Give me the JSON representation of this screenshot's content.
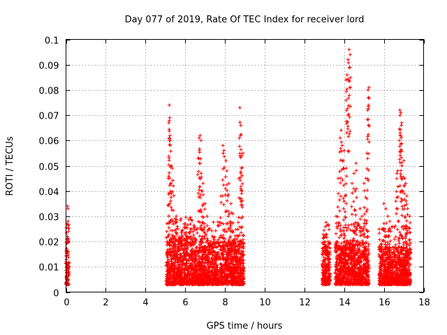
{
  "chart_data": {
    "type": "scatter",
    "title": "Day 077 of 2019, Rate Of TEC Index for receiver lord",
    "xlabel": "GPS time / hours",
    "ylabel": "ROTI / TECUs",
    "xlim": [
      0,
      18
    ],
    "ylim": [
      0,
      0.1
    ],
    "x_ticks": [
      0,
      2,
      4,
      6,
      8,
      10,
      12,
      14,
      16,
      18
    ],
    "y_ticks": [
      0,
      0.01,
      0.02,
      0.03,
      0.04,
      0.05,
      0.06,
      0.07,
      0.08,
      0.09,
      0.1
    ],
    "marker": "+",
    "grid": true,
    "series": [
      {
        "name": "ROTI",
        "color": "#ff0000",
        "segments": [
          {
            "x_start": 0.0,
            "x_end": 0.15,
            "core": [
              0.003,
              0.02
            ],
            "peaks": [
              [
                0.08,
                0.034
              ],
              [
                0.1,
                0.033
              ],
              [
                0.05,
                0.027
              ],
              [
                0.12,
                0.024
              ],
              [
                0.07,
                0.022
              ],
              [
                0.09,
                0.009
              ],
              [
                0.04,
                0.005
              ]
            ]
          },
          {
            "x_start": 5.05,
            "x_end": 6.5,
            "core": [
              0.003,
              0.022
            ],
            "peaks": [
              [
                5.2,
                0.074
              ],
              [
                5.22,
                0.069
              ],
              [
                5.18,
                0.067
              ],
              [
                5.2,
                0.061
              ],
              [
                5.25,
                0.06
              ],
              [
                5.3,
                0.05
              ],
              [
                5.35,
                0.049
              ],
              [
                5.15,
                0.045
              ],
              [
                5.4,
                0.042
              ],
              [
                5.3,
                0.039
              ],
              [
                5.5,
                0.028
              ],
              [
                5.6,
                0.026
              ],
              [
                6.0,
                0.027
              ],
              [
                6.3,
                0.025
              ]
            ]
          },
          {
            "x_start": 6.5,
            "x_end": 7.7,
            "core": [
              0.003,
              0.02
            ],
            "peaks": [
              [
                6.75,
                0.062
              ],
              [
                6.7,
                0.061
              ],
              [
                6.8,
                0.06
              ],
              [
                6.72,
                0.056
              ],
              [
                6.65,
                0.053
              ],
              [
                6.8,
                0.047
              ],
              [
                6.9,
                0.043
              ],
              [
                6.85,
                0.04
              ],
              [
                7.0,
                0.035
              ],
              [
                7.1,
                0.03
              ],
              [
                7.2,
                0.025
              ]
            ]
          },
          {
            "x_start": 7.7,
            "x_end": 8.95,
            "core": [
              0.003,
              0.02
            ],
            "peaks": [
              [
                8.75,
                0.073
              ],
              [
                8.8,
                0.066
              ],
              [
                8.78,
                0.062
              ],
              [
                7.9,
                0.058
              ],
              [
                7.95,
                0.056
              ],
              [
                8.05,
                0.052
              ],
              [
                8.1,
                0.048
              ],
              [
                8.9,
                0.055
              ],
              [
                8.85,
                0.054
              ],
              [
                8.8,
                0.047
              ],
              [
                8.7,
                0.045
              ],
              [
                8.85,
                0.04
              ],
              [
                8.2,
                0.043
              ],
              [
                8.15,
                0.038
              ],
              [
                8.3,
                0.035
              ],
              [
                8.4,
                0.031
              ],
              [
                7.8,
                0.038
              ]
            ]
          },
          {
            "x_start": 12.9,
            "x_end": 13.3,
            "core": [
              0.003,
              0.02
            ],
            "peaks": [
              [
                13.0,
                0.022
              ],
              [
                13.1,
                0.018
              ],
              [
                13.2,
                0.016
              ]
            ]
          },
          {
            "x_start": 13.55,
            "x_end": 15.25,
            "core": [
              0.003,
              0.02
            ],
            "peaks": [
              [
                14.25,
                0.096
              ],
              [
                14.3,
                0.094
              ],
              [
                14.2,
                0.092
              ],
              [
                14.28,
                0.089
              ],
              [
                14.15,
                0.086
              ],
              [
                14.1,
                0.084
              ],
              [
                15.25,
                0.081
              ],
              [
                15.2,
                0.08
              ],
              [
                15.22,
                0.077
              ],
              [
                15.18,
                0.072
              ],
              [
                14.2,
                0.07
              ],
              [
                13.85,
                0.064
              ],
              [
                13.8,
                0.061
              ],
              [
                13.9,
                0.058
              ],
              [
                14.0,
                0.056
              ],
              [
                13.95,
                0.052
              ],
              [
                14.1,
                0.049
              ],
              [
                13.7,
                0.045
              ],
              [
                14.6,
                0.051
              ],
              [
                14.5,
                0.047
              ],
              [
                15.1,
                0.045
              ],
              [
                15.0,
                0.043
              ],
              [
                14.4,
                0.043
              ],
              [
                14.55,
                0.04
              ],
              [
                14.05,
                0.038
              ],
              [
                15.15,
                0.037
              ],
              [
                14.8,
                0.033
              ],
              [
                14.9,
                0.03
              ],
              [
                13.6,
                0.03
              ]
            ]
          },
          {
            "x_start": 15.75,
            "x_end": 16.45,
            "core": [
              0.003,
              0.018
            ],
            "peaks": [
              [
                16.0,
                0.035
              ],
              [
                16.1,
                0.033
              ],
              [
                16.2,
                0.03
              ],
              [
                16.3,
                0.028
              ],
              [
                15.9,
                0.025
              ],
              [
                16.05,
                0.022
              ],
              [
                16.35,
                0.024
              ]
            ]
          },
          {
            "x_start": 16.45,
            "x_end": 17.35,
            "core": [
              0.003,
              0.018
            ],
            "peaks": [
              [
                16.8,
                0.072
              ],
              [
                16.85,
                0.071
              ],
              [
                16.9,
                0.067
              ],
              [
                16.88,
                0.066
              ],
              [
                16.82,
                0.063
              ],
              [
                17.0,
                0.052
              ],
              [
                16.9,
                0.05
              ],
              [
                16.7,
                0.048
              ],
              [
                16.65,
                0.047
              ],
              [
                17.05,
                0.045
              ],
              [
                17.1,
                0.043
              ],
              [
                16.95,
                0.04
              ],
              [
                17.15,
                0.038
              ],
              [
                16.6,
                0.036
              ],
              [
                17.2,
                0.033
              ],
              [
                17.3,
                0.03
              ],
              [
                16.75,
                0.028
              ]
            ]
          }
        ]
      }
    ]
  }
}
